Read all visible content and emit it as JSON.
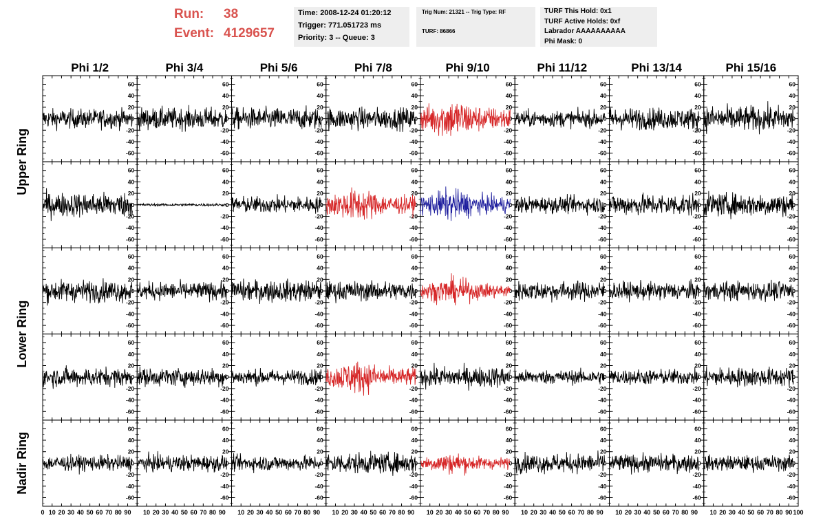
{
  "header": {
    "run_label": "Run:",
    "run_value": "38",
    "event_label": "Event:",
    "event_value": "4129657",
    "accent_color": "#d9534f"
  },
  "info_box_1": {
    "time": "Time: 2008-12-24 01:20:12",
    "trigger": "Trigger: 771.051723 ms",
    "priority": "Priority: 3 -- Queue: 3"
  },
  "info_box_2": {
    "trig": "Trig Num: 21321 -- Trig Type: RF",
    "turf": "TURF: 86866"
  },
  "info_box_3": {
    "this_hold": "TURF This Hold: 0x1",
    "active_holds": "TURF Active Holds: 0xf",
    "labrador": "Labrador AAAAAAAAAA",
    "phi_mask": "Phi Mask: 0"
  },
  "chart_data": {
    "type": "line",
    "columns": [
      "Phi 1/2",
      "Phi 3/4",
      "Phi 5/6",
      "Phi 7/8",
      "Phi 9/10",
      "Phi 11/12",
      "Phi 13/14",
      "Phi 15/16"
    ],
    "row_labels": [
      {
        "text": "Upper Ring",
        "rows": [
          0,
          1
        ]
      },
      {
        "text": "Lower Ring",
        "rows": [
          2,
          3
        ]
      },
      {
        "text": "Nadir Ring",
        "rows": [
          4
        ]
      }
    ],
    "ylim": [
      -75,
      75
    ],
    "yticks": [
      -60,
      -40,
      -20,
      0,
      20,
      40,
      60
    ],
    "xlim": [
      0,
      100
    ],
    "xticks": [
      0,
      10,
      20,
      30,
      40,
      50,
      60,
      70,
      80,
      90,
      100
    ],
    "trace_x_range": [
      0,
      95
    ],
    "colors": {
      "normal": "#000000",
      "triggered_red": "#d62728",
      "triggered_blue": "#1f1f9e"
    },
    "panel_colors": [
      [
        "normal",
        "normal",
        "normal",
        "normal",
        "triggered_red",
        "normal",
        "normal",
        "normal"
      ],
      [
        "normal",
        "normal",
        "normal",
        "triggered_red",
        "triggered_blue",
        "normal",
        "normal",
        "normal"
      ],
      [
        "normal",
        "normal",
        "normal",
        "normal",
        "triggered_red",
        "normal",
        "normal",
        "normal"
      ],
      [
        "normal",
        "normal",
        "normal",
        "triggered_red",
        "normal",
        "normal",
        "normal",
        "normal"
      ],
      [
        "normal",
        "normal",
        "normal",
        "normal",
        "triggered_red",
        "normal",
        "normal",
        "normal"
      ]
    ],
    "amplitudes": [
      [
        15,
        17,
        17,
        17,
        25,
        13,
        17,
        20
      ],
      [
        19,
        2,
        13,
        20,
        19,
        13,
        17,
        18
      ],
      [
        17,
        14,
        17,
        15,
        16,
        15,
        14,
        15
      ],
      [
        15,
        14,
        12,
        20,
        16,
        11,
        12,
        15
      ],
      [
        12,
        13,
        12,
        16,
        13,
        15,
        14,
        12
      ]
    ]
  }
}
